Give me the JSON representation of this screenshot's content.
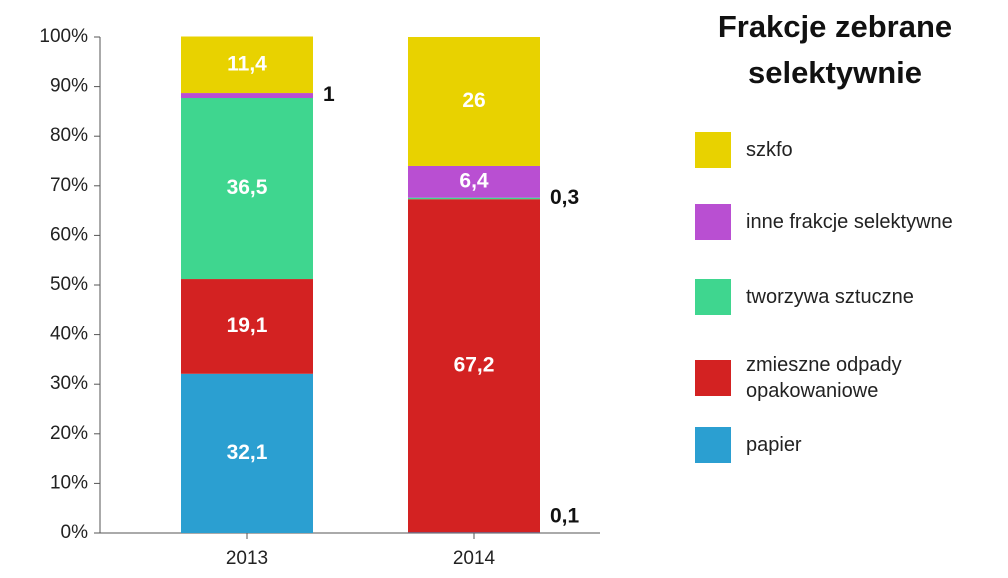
{
  "chart_data": {
    "type": "stacked_bar",
    "legend_title": "Frakcje zebrane selektywnie",
    "categories": [
      "2013",
      "2014"
    ],
    "series": [
      {
        "name": "papier",
        "color": "#2b9fd1",
        "values": [
          32.1,
          0.1
        ],
        "value_labels": [
          "32,1",
          "0,1"
        ]
      },
      {
        "name": "zmieszne odpady opakowaniowe",
        "color": "#d32222",
        "values": [
          19.1,
          67.2
        ],
        "value_labels": [
          "19,1",
          "67,2"
        ]
      },
      {
        "name": "tworzywa sztuczne",
        "color": "#3fd68f",
        "values": [
          36.5,
          0.3
        ],
        "value_labels": [
          "36,5",
          "0,3"
        ]
      },
      {
        "name": "inne frakcje selektywne",
        "color": "#b94fd2",
        "values": [
          1,
          6.4
        ],
        "value_labels": [
          "1",
          "6,4"
        ]
      },
      {
        "name": "szkfo",
        "color": "#e8d200",
        "values": [
          11.4,
          26
        ],
        "value_labels": [
          "11,4",
          "26"
        ]
      }
    ],
    "ylim": [
      0,
      100
    ],
    "yticks": [
      {
        "value": 0,
        "label": "0%"
      },
      {
        "value": 10,
        "label": "10%"
      },
      {
        "value": 20,
        "label": "20%"
      },
      {
        "value": 30,
        "label": "30%"
      },
      {
        "value": 40,
        "label": "40%"
      },
      {
        "value": 50,
        "label": "50%"
      },
      {
        "value": 60,
        "label": "60%"
      },
      {
        "value": 70,
        "label": "70%"
      },
      {
        "value": 80,
        "label": "80%"
      },
      {
        "value": 90,
        "label": "90%"
      },
      {
        "value": 100,
        "label": "100%"
      }
    ],
    "legend": "right"
  }
}
